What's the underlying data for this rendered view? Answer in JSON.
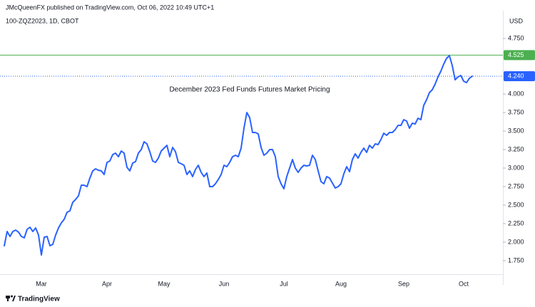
{
  "chart_data": {
    "type": "line",
    "header": "JMcQueenFX published on TradingView.com, Oct 06, 2022 10:49 UTC+1",
    "symbol": "100-ZQZ2023, 1D, CBOT",
    "title": "December 2023 Fed Funds Futures Market Pricing",
    "y_axis_unit": "USD",
    "footer": "TradingView",
    "categories": [
      null,
      null,
      null,
      null,
      null,
      null,
      null,
      null,
      null,
      null,
      null,
      null,
      null,
      "Mar",
      null,
      null,
      null,
      null,
      null,
      null,
      null,
      null,
      null,
      null,
      null,
      null,
      null,
      null,
      null,
      null,
      null,
      null,
      null,
      null,
      null,
      null,
      "Apr",
      null,
      null,
      null,
      null,
      null,
      null,
      null,
      null,
      null,
      null,
      null,
      null,
      null,
      null,
      null,
      null,
      null,
      null,
      null,
      "May",
      null,
      null,
      null,
      null,
      null,
      null,
      null,
      null,
      null,
      null,
      null,
      null,
      null,
      null,
      null,
      null,
      null,
      null,
      null,
      null,
      "Jun",
      null,
      null,
      null,
      null,
      null,
      null,
      null,
      null,
      null,
      null,
      null,
      null,
      null,
      null,
      null,
      null,
      null,
      null,
      null,
      null,
      "Jul",
      null,
      null,
      null,
      null,
      null,
      null,
      null,
      null,
      null,
      null,
      null,
      null,
      null,
      null,
      null,
      null,
      null,
      null,
      null,
      "Aug",
      null,
      null,
      null,
      null,
      null,
      null,
      null,
      null,
      null,
      null,
      null,
      null,
      null,
      null,
      null,
      null,
      null,
      null,
      null,
      null,
      null,
      "Sep",
      null,
      null,
      null,
      null,
      null,
      null,
      null,
      null,
      null,
      null,
      null,
      null,
      null,
      null,
      null,
      null,
      null,
      null,
      null,
      null,
      "Oct",
      null,
      null,
      null
    ],
    "series": [
      {
        "name": "100-ZQZ2023",
        "color": "#2962ff",
        "values": [
          1.952,
          2.144,
          2.077,
          2.144,
          2.163,
          2.135,
          2.077,
          2.058,
          2.173,
          2.202,
          2.144,
          2.192,
          2.096,
          1.827,
          2.067,
          2.077,
          1.952,
          1.971,
          2.096,
          2.192,
          2.26,
          2.308,
          2.404,
          2.423,
          2.538,
          2.577,
          2.625,
          2.769,
          2.769,
          2.75,
          2.865,
          2.962,
          2.99,
          2.971,
          2.962,
          2.913,
          3.077,
          3.096,
          3.183,
          3.202,
          3.154,
          3.231,
          3.202,
          3.01,
          2.962,
          3.067,
          3.087,
          3.202,
          3.25,
          3.356,
          3.327,
          3.221,
          3.096,
          3.077,
          3.135,
          3.231,
          3.269,
          3.308,
          3.154,
          3.279,
          3.221,
          3.077,
          3.058,
          3.038,
          2.913,
          2.962,
          2.885,
          2.981,
          3.038,
          2.942,
          2.885,
          2.933,
          2.75,
          2.75,
          2.788,
          2.846,
          2.913,
          3.038,
          3.019,
          3.077,
          3.154,
          3.173,
          3.154,
          3.269,
          3.538,
          3.75,
          3.683,
          3.481,
          3.481,
          3.462,
          3.279,
          3.173,
          3.202,
          3.25,
          3.25,
          3.154,
          2.885,
          2.788,
          2.721,
          2.885,
          3.0,
          3.115,
          3.0,
          2.942,
          3.0,
          3.038,
          3.029,
          3.038,
          3.173,
          3.115,
          2.962,
          2.817,
          2.788,
          2.885,
          2.865,
          2.798,
          2.731,
          2.75,
          2.788,
          2.923,
          3.019,
          2.952,
          3.115,
          3.192,
          3.135,
          3.212,
          3.269,
          3.212,
          3.308,
          3.269,
          3.327,
          3.317,
          3.385,
          3.471,
          3.442,
          3.481,
          3.481,
          3.519,
          3.577,
          3.577,
          3.654,
          3.635,
          3.538,
          3.606,
          3.596,
          3.673,
          3.654,
          3.846,
          3.923,
          4.019,
          4.058,
          4.135,
          4.231,
          4.308,
          4.404,
          4.481,
          4.519,
          4.385,
          4.192,
          4.231,
          4.25,
          4.173,
          4.154,
          4.212,
          4.24
        ]
      }
    ],
    "ylim": [
      1.567,
      5.125
    ],
    "yticks": [
      {
        "value": 1.75,
        "label": "1.750"
      },
      {
        "value": 2.0,
        "label": "2.000"
      },
      {
        "value": 2.25,
        "label": "2.250"
      },
      {
        "value": 2.5,
        "label": "2.500"
      },
      {
        "value": 2.75,
        "label": "2.750"
      },
      {
        "value": 3.0,
        "label": "3.000"
      },
      {
        "value": 3.25,
        "label": "3.250"
      },
      {
        "value": 3.5,
        "label": "3.500"
      },
      {
        "value": 3.75,
        "label": "3.750"
      },
      {
        "value": 4.0,
        "label": "4.000"
      },
      {
        "value": 4.75,
        "label": "4.750"
      }
    ],
    "y_axis_side": "right",
    "grid": false,
    "price_lines": [
      {
        "value": 4.525,
        "label": "4.525",
        "color": "#4caf50",
        "style": "solid"
      },
      {
        "value": 4.24,
        "label": "4.240",
        "color": "#2962ff",
        "style": "dotted"
      }
    ]
  }
}
